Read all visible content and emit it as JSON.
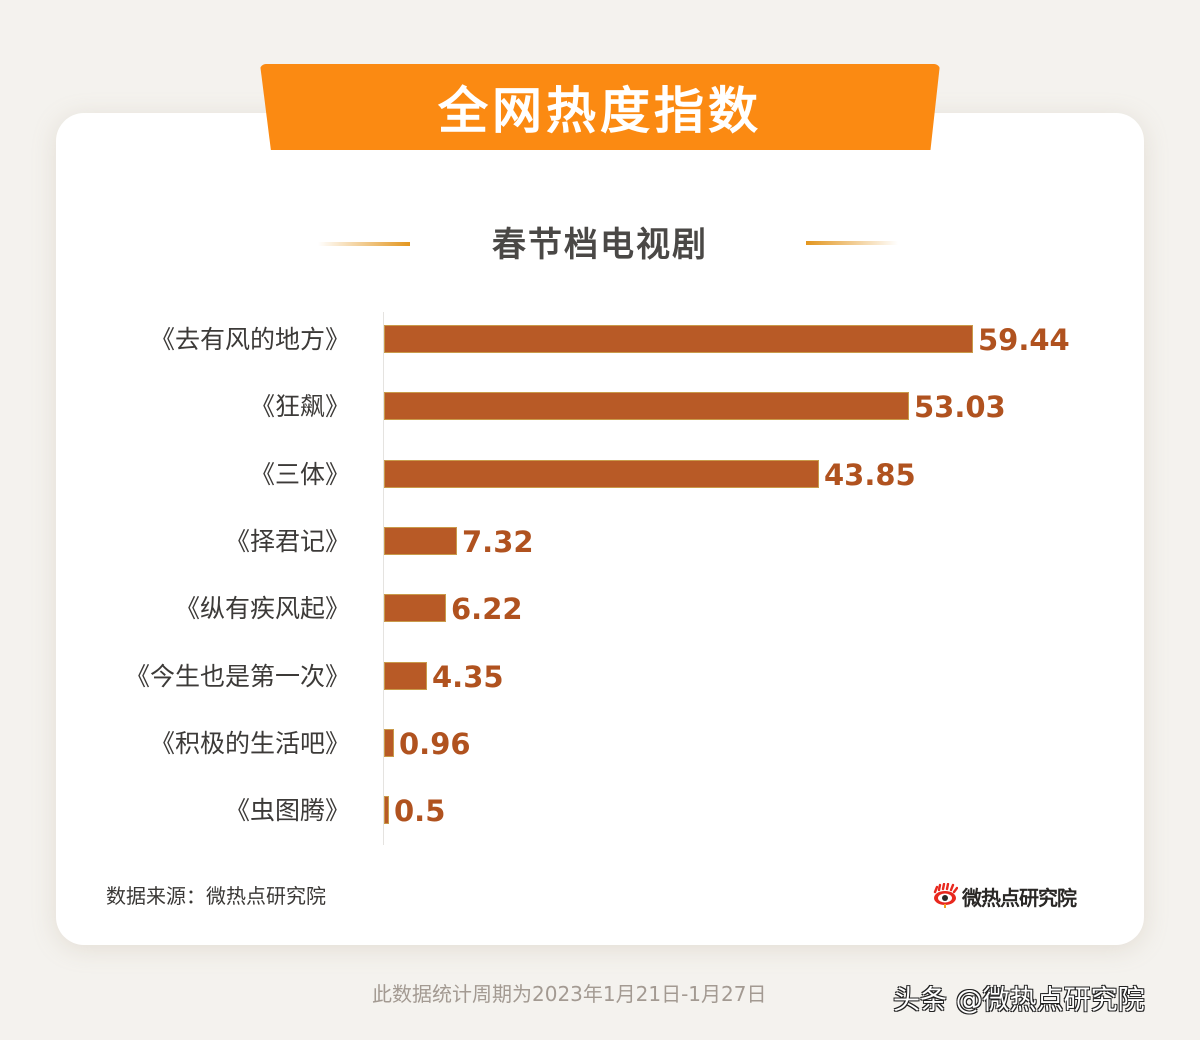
{
  "header": {
    "title": "全网热度指数",
    "subtitle": "春节档电视剧"
  },
  "colors": {
    "banner": "#fb8a12",
    "bar": "#b85a26",
    "value_text": "#b0521f",
    "background": "#f4f2ee",
    "card": "#ffffff"
  },
  "rows": [
    {
      "label": "《去有风的地方》",
      "value": "59.44"
    },
    {
      "label": "《狂飙》",
      "value": "53.03"
    },
    {
      "label": "《三体》",
      "value": "43.85"
    },
    {
      "label": "《择君记》",
      "value": "7.32"
    },
    {
      "label": "《纵有疾风起》",
      "value": "6.22"
    },
    {
      "label": "《今生也是第一次》",
      "value": "4.35"
    },
    {
      "label": "《积极的生活吧》",
      "value": "0.96"
    },
    {
      "label": "《虫图腾》",
      "value": "0.5"
    }
  ],
  "footer": {
    "source": "数据来源：微热点研究院",
    "logo_text": "微热点研究院",
    "logo_icon": "eye-logo-icon",
    "footnote": "此数据统计周期为2023年1月21日-1月27日",
    "watermark": "头条 @微热点研究院"
  },
  "chart_data": {
    "type": "bar",
    "orientation": "horizontal",
    "title": "全网热度指数",
    "subtitle": "春节档电视剧",
    "categories": [
      "《去有风的地方》",
      "《狂飙》",
      "《三体》",
      "《择君记》",
      "《纵有疾风起》",
      "《今生也是第一次》",
      "《积极的生活吧》",
      "《虫图腾》"
    ],
    "values": [
      59.44,
      53.03,
      43.85,
      7.32,
      6.22,
      4.35,
      0.96,
      0.5
    ],
    "xlabel": "",
    "ylabel": "",
    "grid": false,
    "legend": null,
    "data_labels": true,
    "annotations": [
      "数据来源：微热点研究院",
      "此数据统计周期为2023年1月21日-1月27日"
    ]
  }
}
